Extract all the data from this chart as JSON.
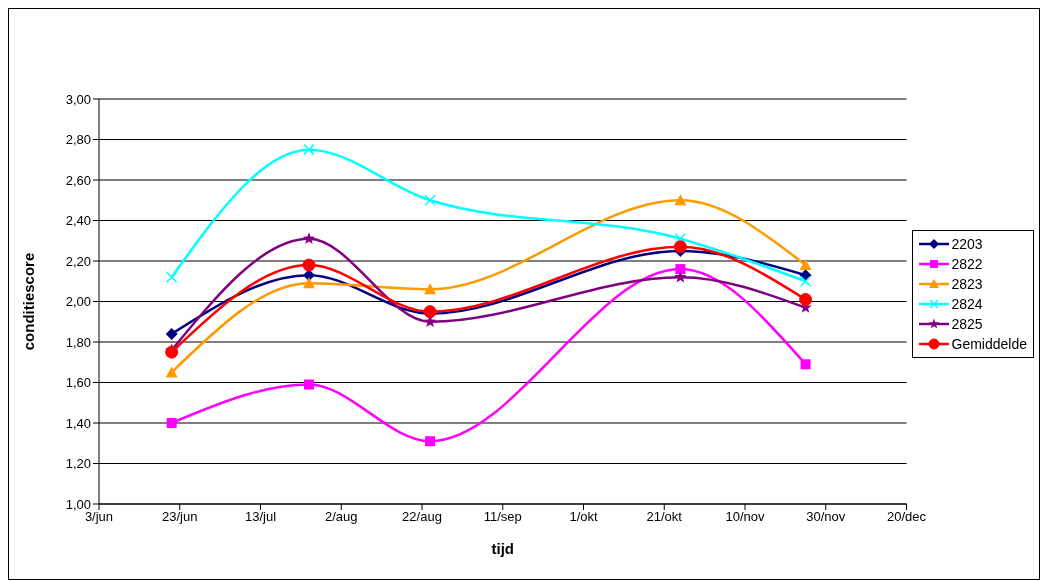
{
  "chart_data": {
    "type": "line",
    "xlabel": "tijd",
    "ylabel": "conditiescore",
    "x": [
      "--06-21",
      "--07-25",
      "--08-24",
      "--10-25",
      "--11-25"
    ],
    "series": [
      {
        "name": "2203",
        "color": "#000080",
        "marker": "diamond",
        "values": [
          1.84,
          2.13,
          1.94,
          2.25,
          2.13
        ]
      },
      {
        "name": "2822",
        "color": "#ff00ff",
        "marker": "square",
        "values": [
          1.4,
          1.59,
          1.31,
          2.16,
          1.69
        ]
      },
      {
        "name": "2823",
        "color": "#ff9900",
        "marker": "triangle",
        "values": [
          1.65,
          2.09,
          2.06,
          2.5,
          2.18
        ]
      },
      {
        "name": "2824",
        "color": "#00ffff",
        "marker": "cross",
        "values": [
          2.12,
          2.75,
          2.5,
          2.31,
          2.1
        ]
      },
      {
        "name": "2825",
        "color": "#800080",
        "marker": "star",
        "values": [
          1.76,
          2.31,
          1.9,
          2.12,
          1.97
        ]
      },
      {
        "name": "Gemiddelde",
        "color": "#ff0000",
        "marker": "circle",
        "values": [
          1.75,
          2.18,
          1.95,
          2.27,
          2.01
        ]
      }
    ],
    "xlim": [
      "--06-03",
      "--12-20"
    ],
    "xticks": [
      {
        "value": "--06-03",
        "label": "3/jun"
      },
      {
        "value": "--06-23",
        "label": "23/jun"
      },
      {
        "value": "--07-13",
        "label": "13/jul"
      },
      {
        "value": "--08-02",
        "label": "2/aug"
      },
      {
        "value": "--08-22",
        "label": "22/aug"
      },
      {
        "value": "--09-11",
        "label": "11/sep"
      },
      {
        "value": "--10-01",
        "label": "1/okt"
      },
      {
        "value": "--10-21",
        "label": "21/okt"
      },
      {
        "value": "--11-10",
        "label": "10/nov"
      },
      {
        "value": "--11-30",
        "label": "30/nov"
      },
      {
        "value": "--12-20",
        "label": "20/dec"
      }
    ],
    "ylim": [
      1,
      3
    ],
    "yticks": [
      {
        "value": 1,
        "label": "1,00"
      },
      {
        "value": 1.2,
        "label": "1,20"
      },
      {
        "value": 1.4,
        "label": "1,40"
      },
      {
        "value": 1.6,
        "label": "1,60"
      },
      {
        "value": 1.8,
        "label": "1,80"
      },
      {
        "value": 2,
        "label": "2,00"
      },
      {
        "value": 2.2,
        "label": "2,20"
      },
      {
        "value": 2.4,
        "label": "2,40"
      },
      {
        "value": 2.6,
        "label": "2,60"
      },
      {
        "value": 2.8,
        "label": "2,80"
      },
      {
        "value": 3,
        "label": "3,00"
      }
    ],
    "grid": "y",
    "legend": "right",
    "line_style": "solid"
  }
}
